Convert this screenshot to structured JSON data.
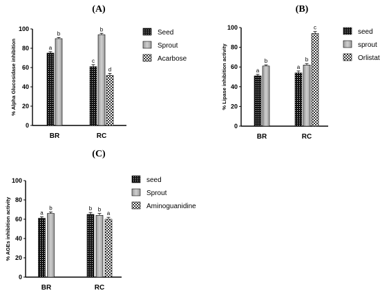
{
  "colors": {
    "axis": "#000000",
    "bar_stroke": "#000000"
  },
  "chart_data": [
    {
      "panel": "(A)",
      "type": "bar",
      "categories": [
        "BR",
        "RC"
      ],
      "ylabel": "% Alpha Glucosidase inhibition",
      "ylim": [
        0,
        100
      ],
      "yticks": [
        0,
        20,
        40,
        60,
        80,
        100
      ],
      "grid": false,
      "legend": "right",
      "series": [
        {
          "name": "Seed",
          "pattern": "dots",
          "values": [
            75,
            61
          ],
          "errors": [
            1.5,
            2
          ],
          "labels": [
            "a",
            "c"
          ]
        },
        {
          "name": "Sprout",
          "pattern": "gray",
          "values": [
            90,
            94
          ],
          "errors": [
            1.2,
            1.5
          ],
          "labels": [
            "b",
            "b"
          ]
        },
        {
          "name": "Acarbose",
          "pattern": "checker",
          "values": [
            null,
            52
          ],
          "errors": [
            null,
            2
          ],
          "labels": [
            "",
            "d"
          ]
        }
      ]
    },
    {
      "panel": "(B)",
      "type": "bar",
      "categories": [
        "BR",
        "RC"
      ],
      "ylabel": "% Lipase inhibition activity",
      "ylim": [
        0,
        100
      ],
      "yticks": [
        0,
        20,
        40,
        60,
        80,
        100
      ],
      "grid": false,
      "legend": "right",
      "series": [
        {
          "name": "seed",
          "pattern": "dots",
          "values": [
            51,
            54
          ],
          "errors": [
            1.5,
            2
          ],
          "labels": [
            "a",
            "a"
          ]
        },
        {
          "name": "sprout",
          "pattern": "gray",
          "values": [
            61,
            62
          ],
          "errors": [
            1.2,
            1.5
          ],
          "labels": [
            "b",
            "b"
          ]
        },
        {
          "name": "Orlistat",
          "pattern": "checker",
          "values": [
            null,
            94
          ],
          "errors": [
            null,
            2
          ],
          "labels": [
            "",
            "c"
          ]
        }
      ]
    },
    {
      "panel": "(C)",
      "type": "bar",
      "categories": [
        "BR",
        "RC"
      ],
      "ylabel": "% AGEs inhibition activity",
      "ylim": [
        0,
        100
      ],
      "yticks": [
        0,
        20,
        40,
        60,
        80,
        100
      ],
      "grid": false,
      "legend": "right",
      "series": [
        {
          "name": "seed",
          "pattern": "dots",
          "values": [
            61,
            65
          ],
          "errors": [
            1.5,
            2
          ],
          "labels": [
            "a",
            "b"
          ]
        },
        {
          "name": "Sprout",
          "pattern": "gray",
          "values": [
            66,
            64
          ],
          "errors": [
            1.5,
            2
          ],
          "labels": [
            "b",
            "b"
          ]
        },
        {
          "name": "Aminoguanidine",
          "pattern": "checker",
          "values": [
            null,
            60
          ],
          "errors": [
            null,
            2
          ],
          "labels": [
            "",
            "a"
          ]
        }
      ]
    }
  ]
}
